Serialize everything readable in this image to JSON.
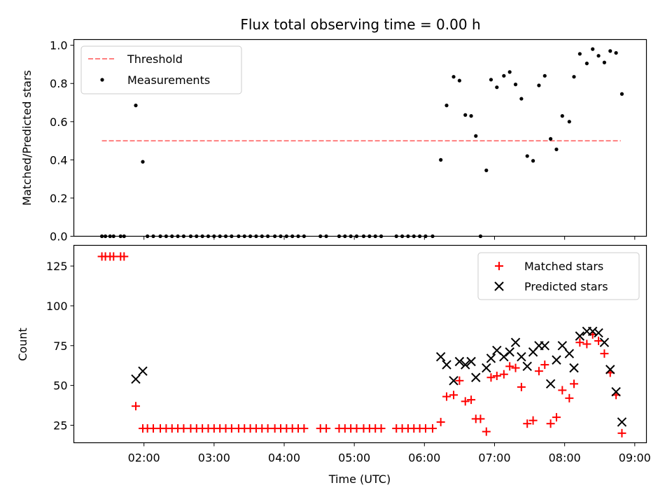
{
  "chart_data": [
    {
      "type": "scatter",
      "title": "Flux total observing time = 0.00 h",
      "xlabel": "",
      "ylabel": "Matched/Predicted stars",
      "xlim": [
        "01:00",
        "09:10"
      ],
      "ylim": [
        0,
        1.03
      ],
      "yticks": [
        "0.0",
        "0.2",
        "0.4",
        "0.6",
        "0.8",
        "1.0"
      ],
      "yticks_values": [
        0,
        0.2,
        0.4,
        0.6,
        0.8,
        1.0
      ],
      "xticks_values": [
        "02:00",
        "03:00",
        "04:00",
        "05:00",
        "06:00",
        "07:00",
        "08:00",
        "09:00"
      ],
      "grid": false,
      "legend": "upper-left",
      "series": [
        {
          "name": "Threshold",
          "kind": "line",
          "color": "#ff7f7f",
          "style": "dashed",
          "points": [
            [
              "01:24",
              0.5
            ],
            [
              "08:48",
              0.5
            ]
          ]
        },
        {
          "name": "Measurements",
          "kind": "points",
          "color": "#000000",
          "points": [
            [
              "01:24",
              0
            ],
            [
              "01:27",
              0
            ],
            [
              "01:31",
              0
            ],
            [
              "01:34",
              0
            ],
            [
              "01:40",
              0
            ],
            [
              "01:43",
              0
            ],
            [
              "01:53",
              0.685
            ],
            [
              "01:59",
              0.39
            ],
            [
              "02:03",
              0
            ],
            [
              "02:08",
              0
            ],
            [
              "02:14",
              0
            ],
            [
              "02:19",
              0
            ],
            [
              "02:24",
              0
            ],
            [
              "02:29",
              0
            ],
            [
              "02:34",
              0
            ],
            [
              "02:40",
              0
            ],
            [
              "02:45",
              0
            ],
            [
              "02:50",
              0
            ],
            [
              "02:55",
              0
            ],
            [
              "03:00",
              0
            ],
            [
              "03:05",
              0
            ],
            [
              "03:10",
              0
            ],
            [
              "03:15",
              0
            ],
            [
              "03:21",
              0
            ],
            [
              "03:26",
              0
            ],
            [
              "03:31",
              0
            ],
            [
              "03:36",
              0
            ],
            [
              "03:41",
              0
            ],
            [
              "03:46",
              0
            ],
            [
              "03:52",
              0
            ],
            [
              "03:57",
              0
            ],
            [
              "04:02",
              0
            ],
            [
              "04:07",
              0
            ],
            [
              "04:12",
              0
            ],
            [
              "04:17",
              0
            ],
            [
              "04:31",
              0
            ],
            [
              "04:36",
              0
            ],
            [
              "04:47",
              0
            ],
            [
              "04:52",
              0
            ],
            [
              "04:57",
              0
            ],
            [
              "05:02",
              0
            ],
            [
              "05:08",
              0
            ],
            [
              "05:13",
              0
            ],
            [
              "05:18",
              0
            ],
            [
              "05:23",
              0
            ],
            [
              "05:36",
              0
            ],
            [
              "05:41",
              0
            ],
            [
              "05:46",
              0
            ],
            [
              "05:51",
              0
            ],
            [
              "05:56",
              0
            ],
            [
              "06:01",
              0
            ],
            [
              "06:07",
              0
            ],
            [
              "06:14",
              0.4
            ],
            [
              "06:19",
              0.685
            ],
            [
              "06:25",
              0.835
            ],
            [
              "06:30",
              0.815
            ],
            [
              "06:35",
              0.635
            ],
            [
              "06:40",
              0.63
            ],
            [
              "06:44",
              0.525
            ],
            [
              "06:48",
              0
            ],
            [
              "06:53",
              0.345
            ],
            [
              "06:57",
              0.82
            ],
            [
              "07:02",
              0.78
            ],
            [
              "07:08",
              0.84
            ],
            [
              "07:13",
              0.86
            ],
            [
              "07:18",
              0.795
            ],
            [
              "07:23",
              0.72
            ],
            [
              "07:28",
              0.42
            ],
            [
              "07:33",
              0.395
            ],
            [
              "07:38",
              0.79
            ],
            [
              "07:43",
              0.84
            ],
            [
              "07:48",
              0.51
            ],
            [
              "07:53",
              0.455
            ],
            [
              "07:58",
              0.63
            ],
            [
              "08:04",
              0.6
            ],
            [
              "08:08",
              0.835
            ],
            [
              "08:13",
              0.955
            ],
            [
              "08:19",
              0.905
            ],
            [
              "08:24",
              0.98
            ],
            [
              "08:29",
              0.945
            ],
            [
              "08:34",
              0.91
            ],
            [
              "08:39",
              0.97
            ],
            [
              "08:44",
              0.96
            ],
            [
              "08:49",
              0.745
            ]
          ]
        }
      ]
    },
    {
      "type": "scatter",
      "title": "",
      "xlabel": "Time (UTC)",
      "ylabel": "Count",
      "xlim": [
        "01:00",
        "09:10"
      ],
      "ylim": [
        14,
        138
      ],
      "yticks": [
        "25",
        "50",
        "75",
        "100",
        "125"
      ],
      "yticks_values": [
        25,
        50,
        75,
        100,
        125
      ],
      "xticks": [
        "02:00",
        "03:00",
        "04:00",
        "05:00",
        "06:00",
        "07:00",
        "08:00",
        "09:00"
      ],
      "grid": false,
      "legend": "upper-right",
      "series": [
        {
          "name": "Matched stars",
          "marker": "plus",
          "color": "#ff0000",
          "points": [
            [
              "01:24",
              131
            ],
            [
              "01:27",
              131
            ],
            [
              "01:31",
              131
            ],
            [
              "01:34",
              131
            ],
            [
              "01:40",
              131
            ],
            [
              "01:43",
              131
            ],
            [
              "01:53",
              37
            ],
            [
              "01:59",
              23
            ],
            [
              "02:03",
              23
            ],
            [
              "02:08",
              23
            ],
            [
              "02:14",
              23
            ],
            [
              "02:19",
              23
            ],
            [
              "02:24",
              23
            ],
            [
              "02:29",
              23
            ],
            [
              "02:34",
              23
            ],
            [
              "02:40",
              23
            ],
            [
              "02:45",
              23
            ],
            [
              "02:50",
              23
            ],
            [
              "02:55",
              23
            ],
            [
              "03:00",
              23
            ],
            [
              "03:05",
              23
            ],
            [
              "03:10",
              23
            ],
            [
              "03:15",
              23
            ],
            [
              "03:21",
              23
            ],
            [
              "03:26",
              23
            ],
            [
              "03:31",
              23
            ],
            [
              "03:36",
              23
            ],
            [
              "03:41",
              23
            ],
            [
              "03:46",
              23
            ],
            [
              "03:52",
              23
            ],
            [
              "03:57",
              23
            ],
            [
              "04:02",
              23
            ],
            [
              "04:07",
              23
            ],
            [
              "04:12",
              23
            ],
            [
              "04:17",
              23
            ],
            [
              "04:31",
              23
            ],
            [
              "04:36",
              23
            ],
            [
              "04:47",
              23
            ],
            [
              "04:52",
              23
            ],
            [
              "04:57",
              23
            ],
            [
              "05:02",
              23
            ],
            [
              "05:08",
              23
            ],
            [
              "05:13",
              23
            ],
            [
              "05:18",
              23
            ],
            [
              "05:23",
              23
            ],
            [
              "05:36",
              23
            ],
            [
              "05:41",
              23
            ],
            [
              "05:46",
              23
            ],
            [
              "05:51",
              23
            ],
            [
              "05:56",
              23
            ],
            [
              "06:01",
              23
            ],
            [
              "06:07",
              23
            ],
            [
              "06:14",
              27
            ],
            [
              "06:19",
              43
            ],
            [
              "06:25",
              44
            ],
            [
              "06:30",
              53
            ],
            [
              "06:35",
              40
            ],
            [
              "06:40",
              41
            ],
            [
              "06:44",
              29
            ],
            [
              "06:48",
              29
            ],
            [
              "06:53",
              21
            ],
            [
              "06:57",
              55
            ],
            [
              "07:02",
              56
            ],
            [
              "07:08",
              57
            ],
            [
              "07:13",
              62
            ],
            [
              "07:18",
              61
            ],
            [
              "07:23",
              49
            ],
            [
              "07:28",
              26
            ],
            [
              "07:33",
              28
            ],
            [
              "07:38",
              59
            ],
            [
              "07:43",
              63
            ],
            [
              "07:48",
              26
            ],
            [
              "07:53",
              30
            ],
            [
              "07:58",
              47
            ],
            [
              "08:04",
              42
            ],
            [
              "08:08",
              51
            ],
            [
              "08:13",
              77
            ],
            [
              "08:19",
              76
            ],
            [
              "08:24",
              82
            ],
            [
              "08:29",
              78
            ],
            [
              "08:34",
              70
            ],
            [
              "08:39",
              58
            ],
            [
              "08:44",
              44
            ],
            [
              "08:49",
              20
            ]
          ]
        },
        {
          "name": "Predicted stars",
          "marker": "x",
          "color": "#000000",
          "points": [
            [
              "01:53",
              54
            ],
            [
              "01:59",
              59
            ],
            [
              "06:14",
              68
            ],
            [
              "06:19",
              63
            ],
            [
              "06:25",
              53
            ],
            [
              "06:30",
              65
            ],
            [
              "06:35",
              63
            ],
            [
              "06:40",
              65
            ],
            [
              "06:44",
              55
            ],
            [
              "06:53",
              61
            ],
            [
              "06:57",
              67
            ],
            [
              "07:02",
              72
            ],
            [
              "07:08",
              68
            ],
            [
              "07:13",
              71
            ],
            [
              "07:18",
              77
            ],
            [
              "07:23",
              68
            ],
            [
              "07:28",
              62
            ],
            [
              "07:33",
              71
            ],
            [
              "07:38",
              75
            ],
            [
              "07:43",
              75
            ],
            [
              "07:48",
              51
            ],
            [
              "07:53",
              66
            ],
            [
              "07:58",
              75
            ],
            [
              "08:04",
              70
            ],
            [
              "08:08",
              61
            ],
            [
              "08:13",
              81
            ],
            [
              "08:19",
              84
            ],
            [
              "08:24",
              84
            ],
            [
              "08:29",
              83
            ],
            [
              "08:34",
              77
            ],
            [
              "08:39",
              60
            ],
            [
              "08:44",
              46
            ],
            [
              "08:49",
              27
            ]
          ]
        }
      ]
    }
  ]
}
